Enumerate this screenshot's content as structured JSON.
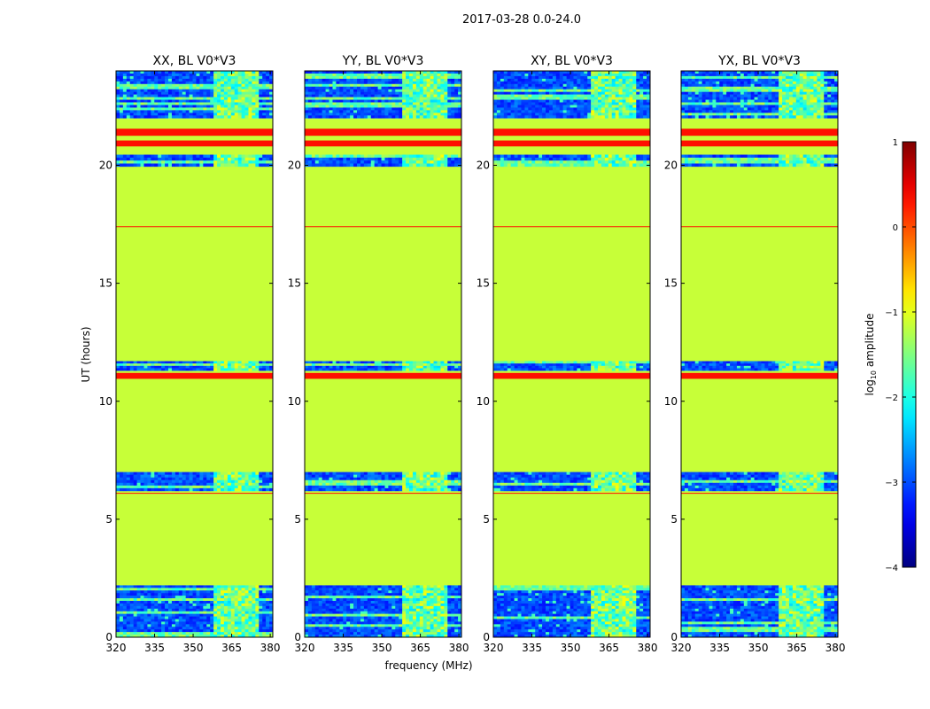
{
  "figure": {
    "suptitle": "2017-03-28 0.0-24.0",
    "xlabel": "frequency (MHz)",
    "ylabel": "UT (hours)"
  },
  "chart_data": [
    {
      "type": "heatmap",
      "title": "XX, BL V0*V3",
      "xlim": [
        320,
        381
      ],
      "ylim": [
        0,
        24
      ],
      "xticks": [
        320,
        335,
        350,
        365,
        380
      ],
      "yticks": [
        0,
        5,
        10,
        15,
        20
      ]
    },
    {
      "type": "heatmap",
      "title": "YY, BL V0*V3",
      "xlim": [
        320,
        381
      ],
      "ylim": [
        0,
        24
      ],
      "xticks": [
        320,
        335,
        350,
        365,
        380
      ],
      "yticks": [
        0,
        5,
        10,
        15,
        20
      ]
    },
    {
      "type": "heatmap",
      "title": "XY, BL V0*V3",
      "xlim": [
        320,
        381
      ],
      "ylim": [
        0,
        24
      ],
      "xticks": [
        320,
        335,
        350,
        365,
        380
      ],
      "yticks": [
        0,
        5,
        10,
        15,
        20
      ]
    },
    {
      "type": "heatmap",
      "title": "YX, BL V0*V3",
      "xlim": [
        320,
        381
      ],
      "ylim": [
        0,
        24
      ],
      "xticks": [
        320,
        335,
        350,
        365,
        380
      ],
      "yticks": [
        0,
        5,
        10,
        15,
        20
      ]
    }
  ],
  "colorbar": {
    "label": "log10 amplitude",
    "label_base": "log",
    "label_sub": "10",
    "label_rest": " amplitude",
    "range": [
      -4,
      1
    ],
    "ticks": [
      1,
      0,
      -1,
      -2,
      -3,
      -4
    ],
    "tick_labels": [
      "1",
      "0",
      "−1",
      "−2",
      "−3",
      "−4"
    ],
    "colormap": "jet"
  },
  "rows": {
    "background_level": -1.15,
    "flagged_level": 0.3,
    "flagged_bands": [
      [
        21.25,
        21.55
      ],
      [
        20.8,
        21.05
      ],
      [
        10.95,
        11.2
      ]
    ],
    "thin_lines": [
      17.4,
      6.1
    ],
    "noisy_bands": [
      [
        0,
        2.2
      ],
      [
        6.2,
        7.0
      ],
      [
        11.3,
        11.7
      ],
      [
        19.95,
        20.45
      ],
      [
        22.0,
        24.0
      ]
    ]
  },
  "colors": {
    "axis": "#000000",
    "background": "#ffffff"
  }
}
